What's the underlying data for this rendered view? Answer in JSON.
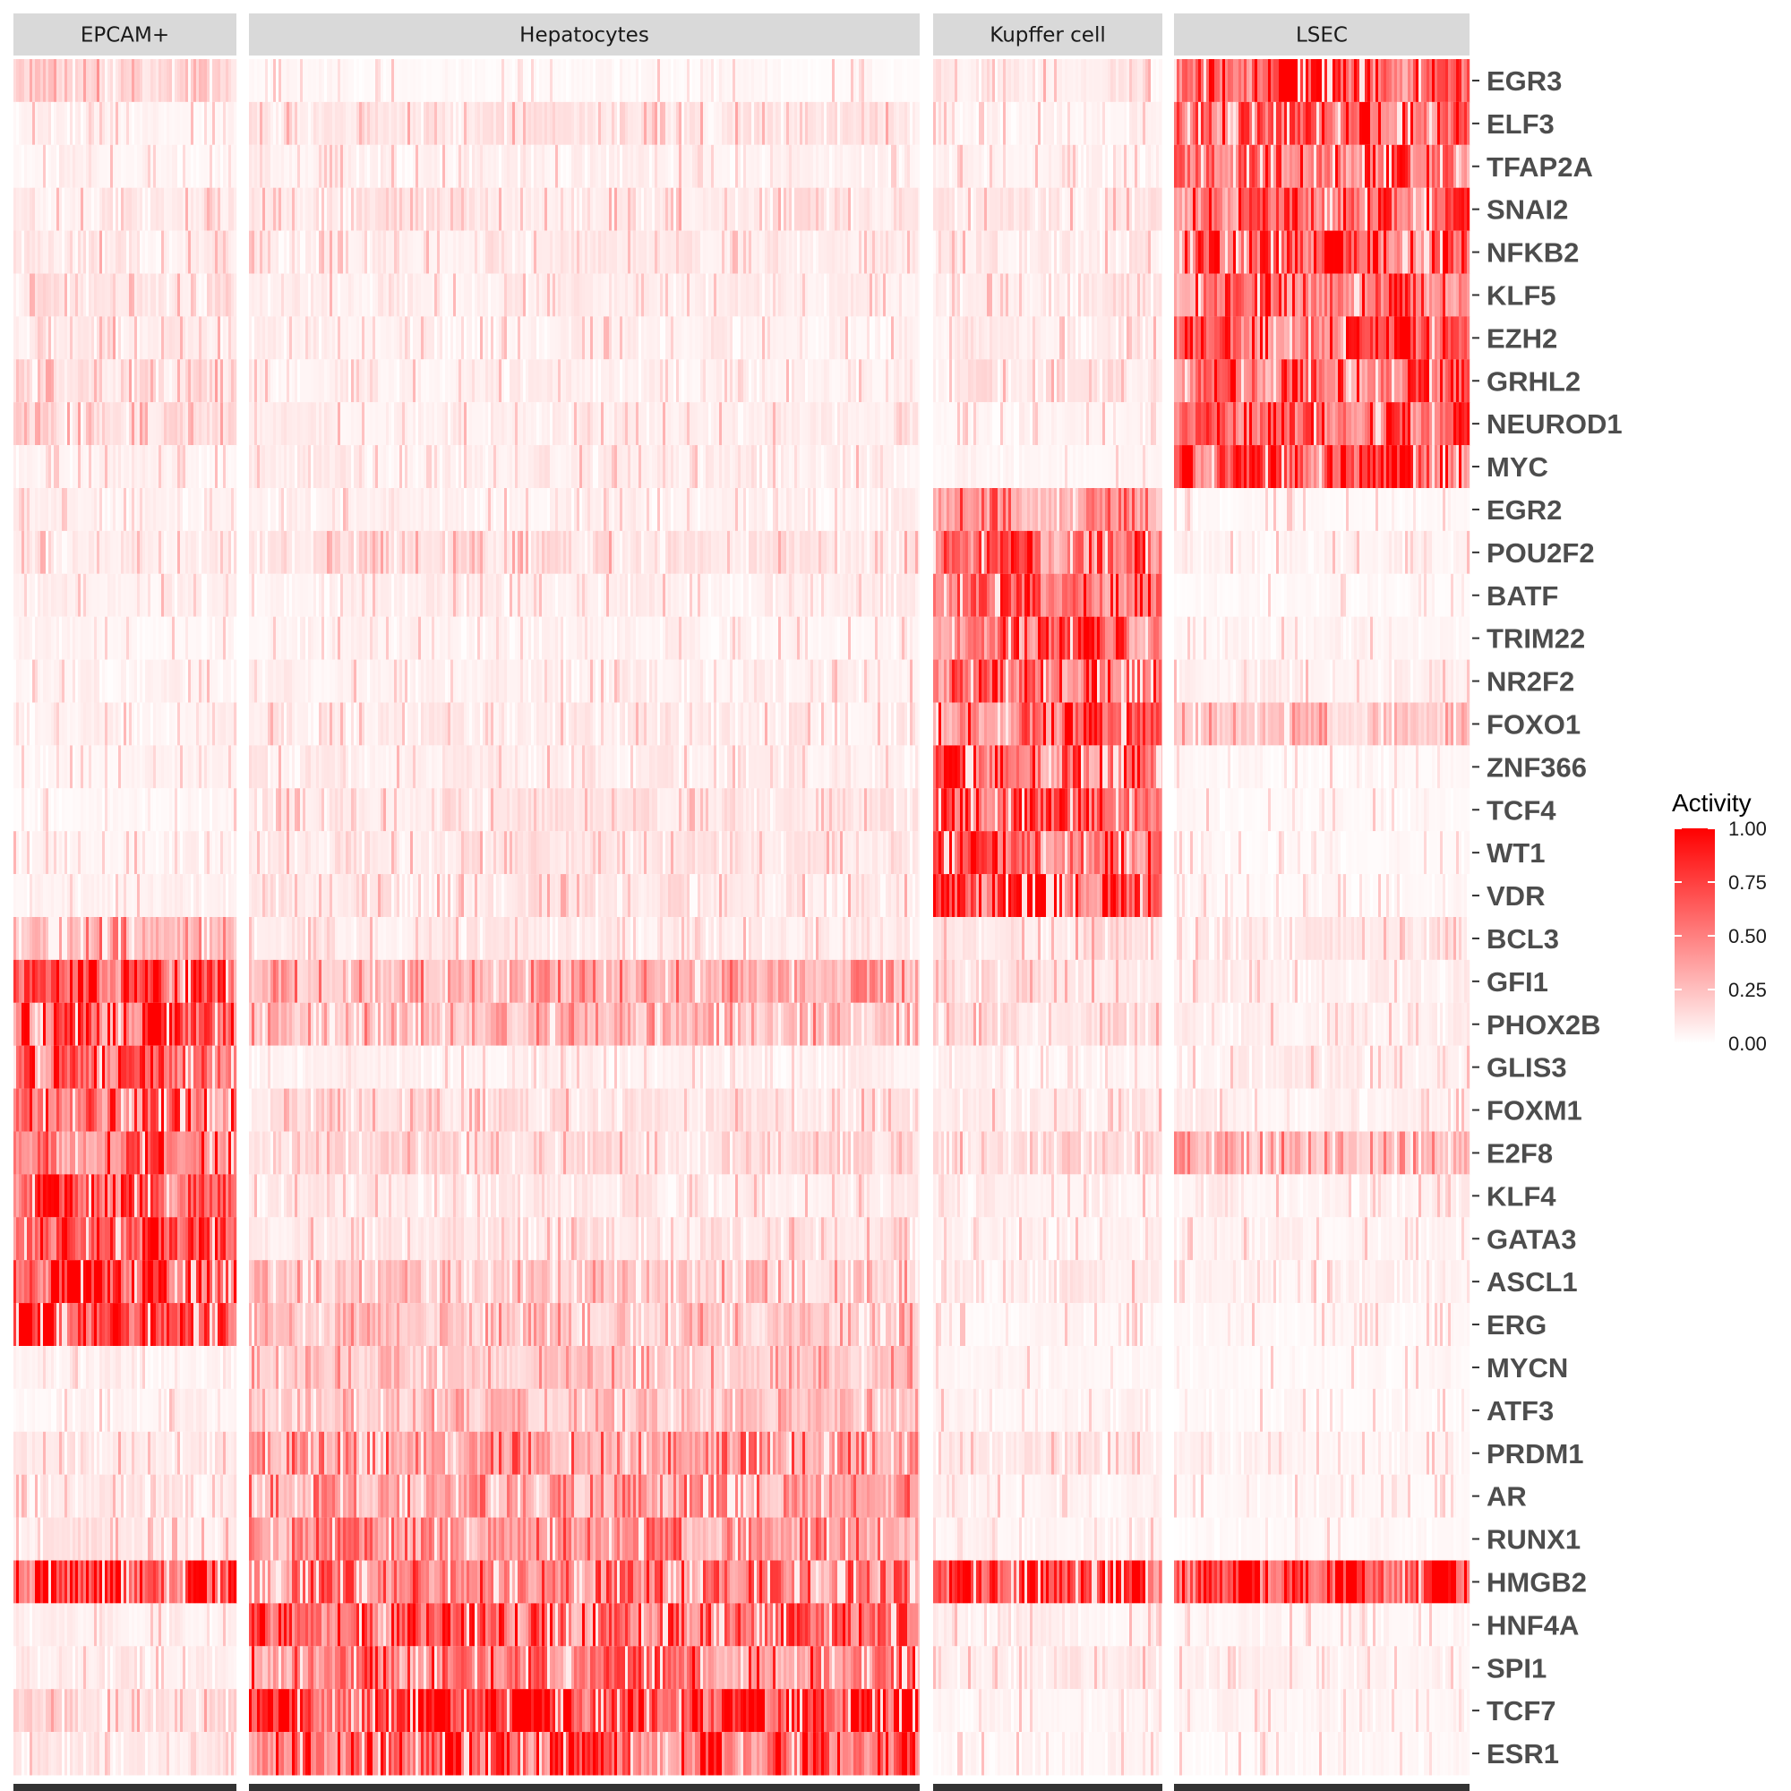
{
  "chart_data": {
    "type": "heatmap",
    "title": "",
    "xlabel": "",
    "ylabel": "",
    "panels": [
      "EPCAM+",
      "Hepatocytes",
      "Kupffer cell",
      "LSEC"
    ],
    "rows": [
      "EGR3",
      "ELF3",
      "TFAP2A",
      "SNAI2",
      "NFKB2",
      "KLF5",
      "EZH2",
      "GRHL2",
      "NEUROD1",
      "MYC",
      "EGR2",
      "POU2F2",
      "BATF",
      "TRIM22",
      "NR2F2",
      "FOXO1",
      "ZNF366",
      "TCF4",
      "WT1",
      "VDR",
      "BCL3",
      "GFI1",
      "PHOX2B",
      "GLIS3",
      "FOXM1",
      "E2F8",
      "KLF4",
      "GATA3",
      "ASCL1",
      "ERG",
      "MYCN",
      "ATF3",
      "PRDM1",
      "AR",
      "RUNX1",
      "HMGB2",
      "HNF4A",
      "SPI1",
      "TCF7",
      "ESR1"
    ],
    "mean_activity": [
      [
        0.15,
        0.03,
        0.08,
        0.65
      ],
      [
        0.05,
        0.1,
        0.05,
        0.6
      ],
      [
        0.05,
        0.06,
        0.05,
        0.55
      ],
      [
        0.08,
        0.1,
        0.1,
        0.55
      ],
      [
        0.1,
        0.08,
        0.08,
        0.6
      ],
      [
        0.1,
        0.07,
        0.08,
        0.55
      ],
      [
        0.1,
        0.06,
        0.08,
        0.62
      ],
      [
        0.12,
        0.06,
        0.1,
        0.58
      ],
      [
        0.12,
        0.07,
        0.05,
        0.68
      ],
      [
        0.05,
        0.07,
        0.04,
        0.7
      ],
      [
        0.05,
        0.06,
        0.4,
        0.03
      ],
      [
        0.1,
        0.12,
        0.55,
        0.05
      ],
      [
        0.06,
        0.06,
        0.55,
        0.03
      ],
      [
        0.04,
        0.05,
        0.55,
        0.05
      ],
      [
        0.05,
        0.06,
        0.55,
        0.06
      ],
      [
        0.06,
        0.08,
        0.6,
        0.2
      ],
      [
        0.04,
        0.07,
        0.6,
        0.03
      ],
      [
        0.03,
        0.1,
        0.65,
        0.03
      ],
      [
        0.06,
        0.1,
        0.65,
        0.03
      ],
      [
        0.05,
        0.1,
        0.7,
        0.03
      ],
      [
        0.3,
        0.08,
        0.12,
        0.08
      ],
      [
        0.62,
        0.3,
        0.12,
        0.06
      ],
      [
        0.58,
        0.25,
        0.12,
        0.06
      ],
      [
        0.55,
        0.06,
        0.05,
        0.06
      ],
      [
        0.55,
        0.12,
        0.08,
        0.06
      ],
      [
        0.62,
        0.12,
        0.15,
        0.28
      ],
      [
        0.62,
        0.08,
        0.06,
        0.06
      ],
      [
        0.68,
        0.1,
        0.06,
        0.05
      ],
      [
        0.72,
        0.2,
        0.08,
        0.05
      ],
      [
        0.7,
        0.22,
        0.04,
        0.03
      ],
      [
        0.05,
        0.22,
        0.04,
        0.03
      ],
      [
        0.05,
        0.2,
        0.05,
        0.03
      ],
      [
        0.1,
        0.38,
        0.08,
        0.05
      ],
      [
        0.1,
        0.35,
        0.05,
        0.03
      ],
      [
        0.1,
        0.38,
        0.05,
        0.03
      ],
      [
        0.7,
        0.45,
        0.75,
        0.88
      ],
      [
        0.06,
        0.55,
        0.06,
        0.04
      ],
      [
        0.08,
        0.5,
        0.08,
        0.05
      ],
      [
        0.12,
        0.82,
        0.04,
        0.04
      ],
      [
        0.08,
        0.65,
        0.04,
        0.03
      ]
    ],
    "legend": {
      "title": "Activity",
      "ticks": [
        "1.00",
        "0.75",
        "0.50",
        "0.25",
        "0.00"
      ],
      "low_color": "#ffffff",
      "high_color": "#ff0000"
    }
  },
  "colors": {
    "strip_fill": "#d9d9d9",
    "bottom_bar": "#333333",
    "tick_color": "#333333"
  }
}
